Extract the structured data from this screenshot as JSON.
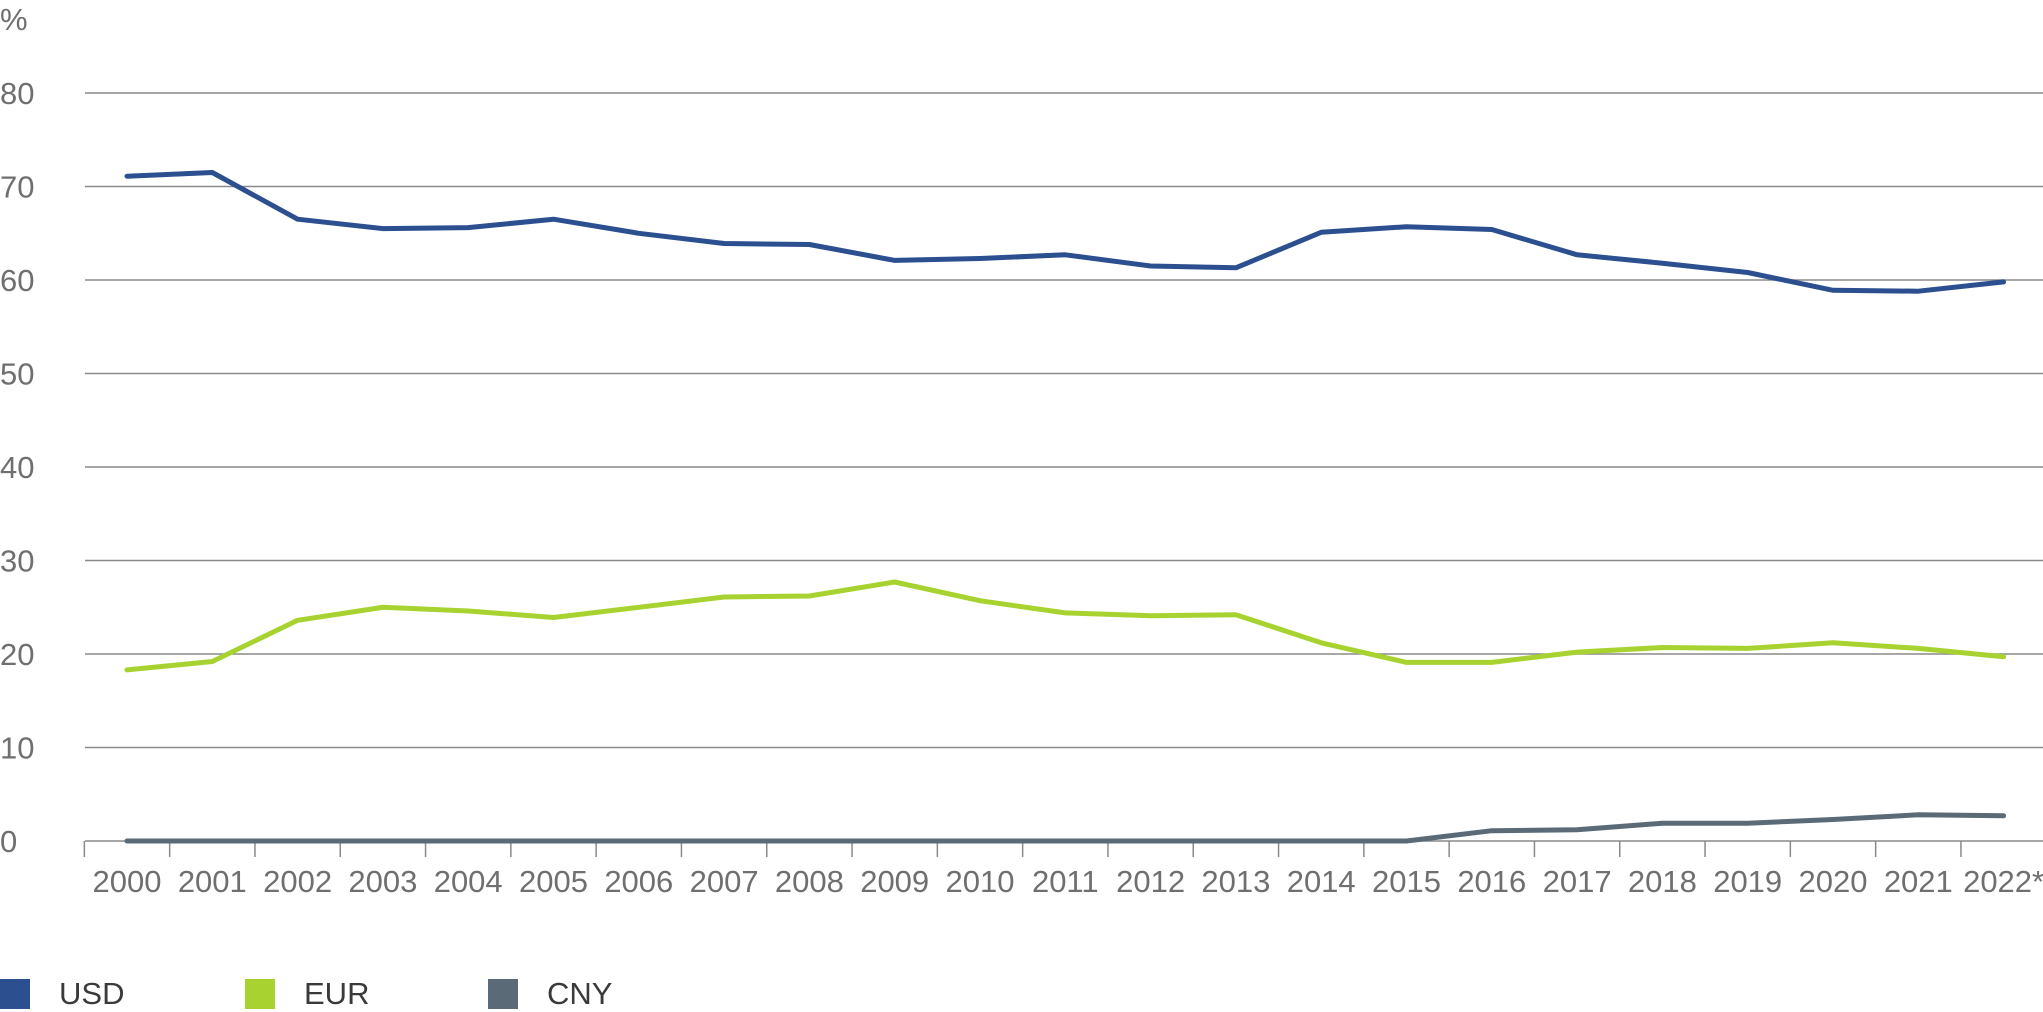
{
  "chart_data": {
    "type": "line",
    "title": "",
    "xlabel": "",
    "ylabel": "%",
    "ylim": [
      0,
      80
    ],
    "yticks": [
      0,
      10,
      20,
      30,
      40,
      50,
      60,
      70,
      80
    ],
    "grid": true,
    "legend_position": "bottom-left",
    "categories": [
      "2000",
      "2001",
      "2002",
      "2003",
      "2004",
      "2005",
      "2006",
      "2007",
      "2008",
      "2009",
      "2010",
      "2011",
      "2012",
      "2013",
      "2014",
      "2015",
      "2016",
      "2017",
      "2018",
      "2019",
      "2020",
      "2021",
      "2022*"
    ],
    "series": [
      {
        "name": "USD",
        "color": "#2b4f8f",
        "values": [
          71.1,
          71.5,
          66.5,
          65.5,
          65.6,
          66.5,
          65.0,
          63.9,
          63.8,
          62.1,
          62.3,
          62.7,
          61.5,
          61.3,
          65.1,
          65.7,
          65.4,
          62.7,
          61.8,
          60.8,
          58.9,
          58.8,
          59.8
        ]
      },
      {
        "name": "EUR",
        "color": "#a8d22f",
        "values": [
          18.3,
          19.2,
          23.6,
          25.0,
          24.6,
          23.9,
          25.0,
          26.1,
          26.2,
          27.7,
          25.7,
          24.4,
          24.1,
          24.2,
          21.2,
          19.1,
          19.1,
          20.2,
          20.7,
          20.6,
          21.2,
          20.6,
          19.7
        ]
      },
      {
        "name": "CNY",
        "color": "#5a6b77",
        "values": [
          0,
          0,
          0,
          0,
          0,
          0,
          0,
          0,
          0,
          0,
          0,
          0,
          0,
          0,
          0,
          0,
          1.1,
          1.2,
          1.9,
          1.9,
          2.3,
          2.8,
          2.7
        ]
      }
    ]
  }
}
